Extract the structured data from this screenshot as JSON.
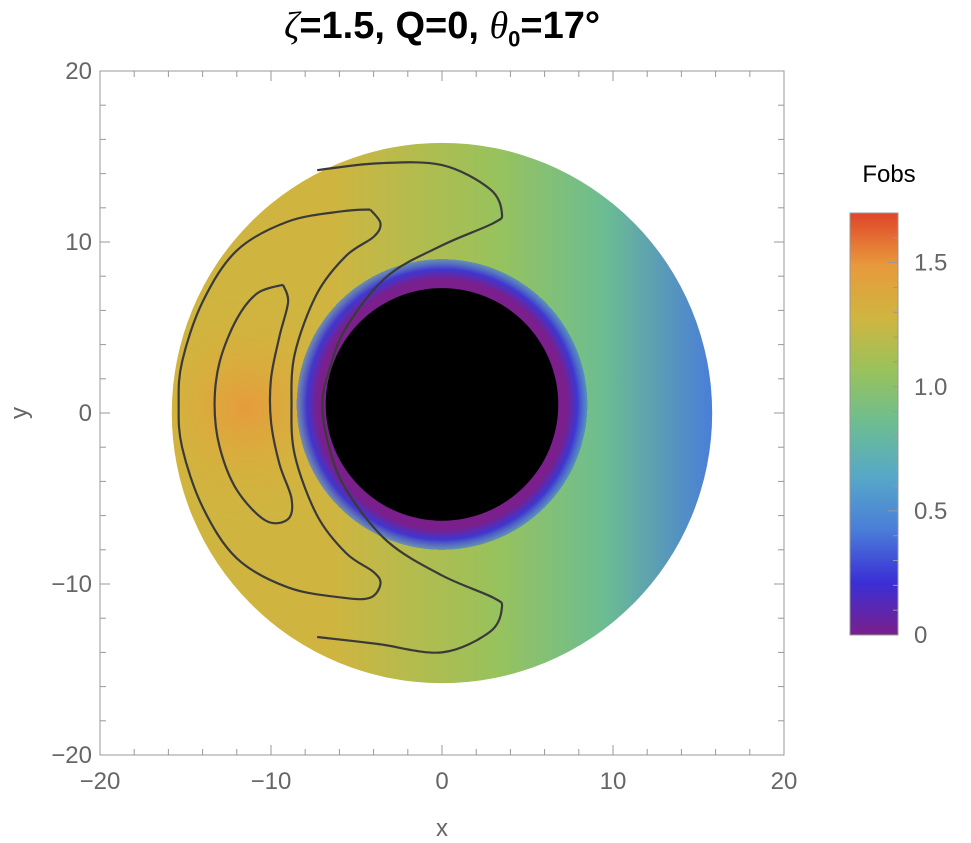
{
  "chart_data": {
    "type": "heatmap",
    "title": {
      "zeta_symbol": "ζ",
      "zeta_value": "=1.5,",
      "q": "Q=0,",
      "theta_symbol": "θ",
      "theta_subscript": "0",
      "theta_value": "=17°"
    },
    "xlabel": "x",
    "ylabel": "y",
    "xlim": [
      -20,
      20
    ],
    "ylim": [
      -20,
      20
    ],
    "x_ticks": [
      -20,
      -10,
      0,
      10,
      20
    ],
    "y_ticks": [
      -20,
      -10,
      0,
      10,
      20
    ],
    "x_tick_labels": [
      "−20",
      "−10",
      "0",
      "10",
      "20"
    ],
    "y_tick_labels": [
      "−20",
      "−10",
      "0",
      "10",
      "20"
    ],
    "disk_outer": {
      "center_x": 0,
      "center_y": 0,
      "radius": 15.8
    },
    "shadow": {
      "center_x": 0,
      "center_y": 0.5,
      "radius": 6.8
    },
    "brightness_peak": {
      "x": -11.5,
      "y": 0.3
    },
    "contours": [
      {
        "level": 0.8,
        "points": [
          [
            -7.3,
            14.2
          ],
          [
            -3.8,
            14.6
          ],
          [
            0,
            14.5
          ],
          [
            2.8,
            13.1
          ],
          [
            3.5,
            11.7
          ],
          [
            3,
            11.1
          ],
          [
            0,
            9.8
          ],
          [
            -3.2,
            8
          ],
          [
            -5.6,
            5
          ],
          [
            -6.6,
            2.5
          ],
          [
            -7,
            0.5
          ],
          [
            -6.6,
            -2
          ],
          [
            -5.6,
            -4.5
          ],
          [
            -3.2,
            -7.5
          ],
          [
            0,
            -9.5
          ],
          [
            3,
            -10.8
          ],
          [
            3.5,
            -11.4
          ],
          [
            2.8,
            -12.8
          ],
          [
            0,
            -14
          ],
          [
            -3.8,
            -13.5
          ],
          [
            -7.3,
            -13.1
          ]
        ]
      },
      {
        "level": 1.0,
        "points": [
          [
            -4.2,
            11.9
          ],
          [
            -5.8,
            11.8
          ],
          [
            -9,
            11.2
          ],
          [
            -12,
            9.5
          ],
          [
            -14,
            6.5
          ],
          [
            -15.2,
            3
          ],
          [
            -15.4,
            0.5
          ],
          [
            -15.2,
            -2
          ],
          [
            -14,
            -5.5
          ],
          [
            -12,
            -8.5
          ],
          [
            -9,
            -10.2
          ],
          [
            -5.8,
            -10.8
          ],
          [
            -4.2,
            -10.8
          ],
          [
            -3.6,
            -10
          ],
          [
            -4,
            -9.3
          ],
          [
            -5.6,
            -8.2
          ],
          [
            -7.3,
            -6
          ],
          [
            -8.6,
            -2.5
          ],
          [
            -8.8,
            0.5
          ],
          [
            -8.6,
            3.5
          ],
          [
            -7.3,
            7
          ],
          [
            -5.6,
            9.2
          ],
          [
            -4,
            10.3
          ],
          [
            -3.6,
            11.1
          ],
          [
            -4.2,
            11.9
          ]
        ]
      },
      {
        "level": 1.2,
        "points": [
          [
            -9.3,
            7.5
          ],
          [
            -10.8,
            7
          ],
          [
            -12,
            5.5
          ],
          [
            -13,
            3
          ],
          [
            -13.3,
            0.5
          ],
          [
            -13,
            -2
          ],
          [
            -12,
            -4.5
          ],
          [
            -10.3,
            -6.3
          ],
          [
            -9,
            -6.2
          ],
          [
            -8.8,
            -5
          ],
          [
            -9.5,
            -3
          ],
          [
            -10,
            -0.5
          ],
          [
            -10,
            2
          ],
          [
            -9.5,
            4.5
          ],
          [
            -9,
            6.5
          ],
          [
            -9.3,
            7.5
          ]
        ]
      }
    ],
    "colorbar": {
      "label": "Fobs",
      "min": 0,
      "max": 1.7,
      "ticks": [
        0,
        0.5,
        1.0,
        1.5
      ],
      "tick_labels": [
        "0",
        "0.5",
        "1.0",
        "1.5"
      ],
      "colors": [
        "#7a1f8c",
        "#3a2fd6",
        "#4a7ed8",
        "#56a8c8",
        "#6cbd92",
        "#98c25c",
        "#cfb540",
        "#e89a3c",
        "#e0452a"
      ]
    },
    "colors": {
      "axis": "#666666",
      "frame": "#999999",
      "contour": "#3a3a3a",
      "shadow": "#000000"
    }
  }
}
